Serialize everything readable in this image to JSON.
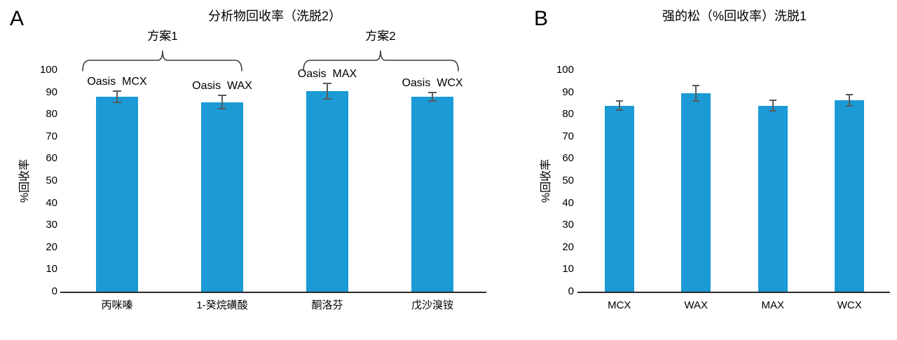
{
  "figure": {
    "panels": [
      {
        "letter": "A",
        "title": "分析物回收率（洗脱2）",
        "y_axis_label": "%回收率"
      },
      {
        "letter": "B",
        "title": "强的松（%回收率）洗脱1",
        "y_axis_label": "%回收率"
      }
    ]
  },
  "chart_data": [
    {
      "type": "bar",
      "panel": "A",
      "title": "分析物回收率（洗脱2）",
      "categories": [
        "丙咪嗪",
        "1-癸烷磺酸",
        "酮洛芬",
        "戊沙溴铵"
      ],
      "values": [
        88,
        85.5,
        90.5,
        88
      ],
      "error_bars": [
        2.5,
        3,
        3.5,
        2
      ],
      "bar_labels": [
        "Oasis  MCX",
        "Oasis  WAX",
        "Oasis  MAX",
        "Oasis  WCX"
      ],
      "group_annotations": [
        {
          "label": "方案1",
          "span": [
            0,
            1
          ]
        },
        {
          "label": "方案2",
          "span": [
            2,
            3
          ]
        }
      ],
      "xlabel": "",
      "ylabel": "%回收率",
      "ylim": [
        0,
        100
      ],
      "ytick_interval": 10,
      "grid": false,
      "legend": false,
      "bar_color": "#1b9ad5",
      "error_color": "#595959"
    },
    {
      "type": "bar",
      "panel": "B",
      "title": "强的松（%回收率）洗脱1",
      "categories": [
        "MCX",
        "WAX",
        "MAX",
        "WCX"
      ],
      "values": [
        84,
        89.5,
        84,
        86.5
      ],
      "error_bars": [
        2,
        3.5,
        2.5,
        2.5
      ],
      "bar_labels": [],
      "group_annotations": [],
      "xlabel": "",
      "ylabel": "%回收率",
      "ylim": [
        0,
        100
      ],
      "ytick_interval": 10,
      "grid": false,
      "legend": false,
      "bar_color": "#1b9ad5",
      "error_color": "#595959"
    }
  ]
}
